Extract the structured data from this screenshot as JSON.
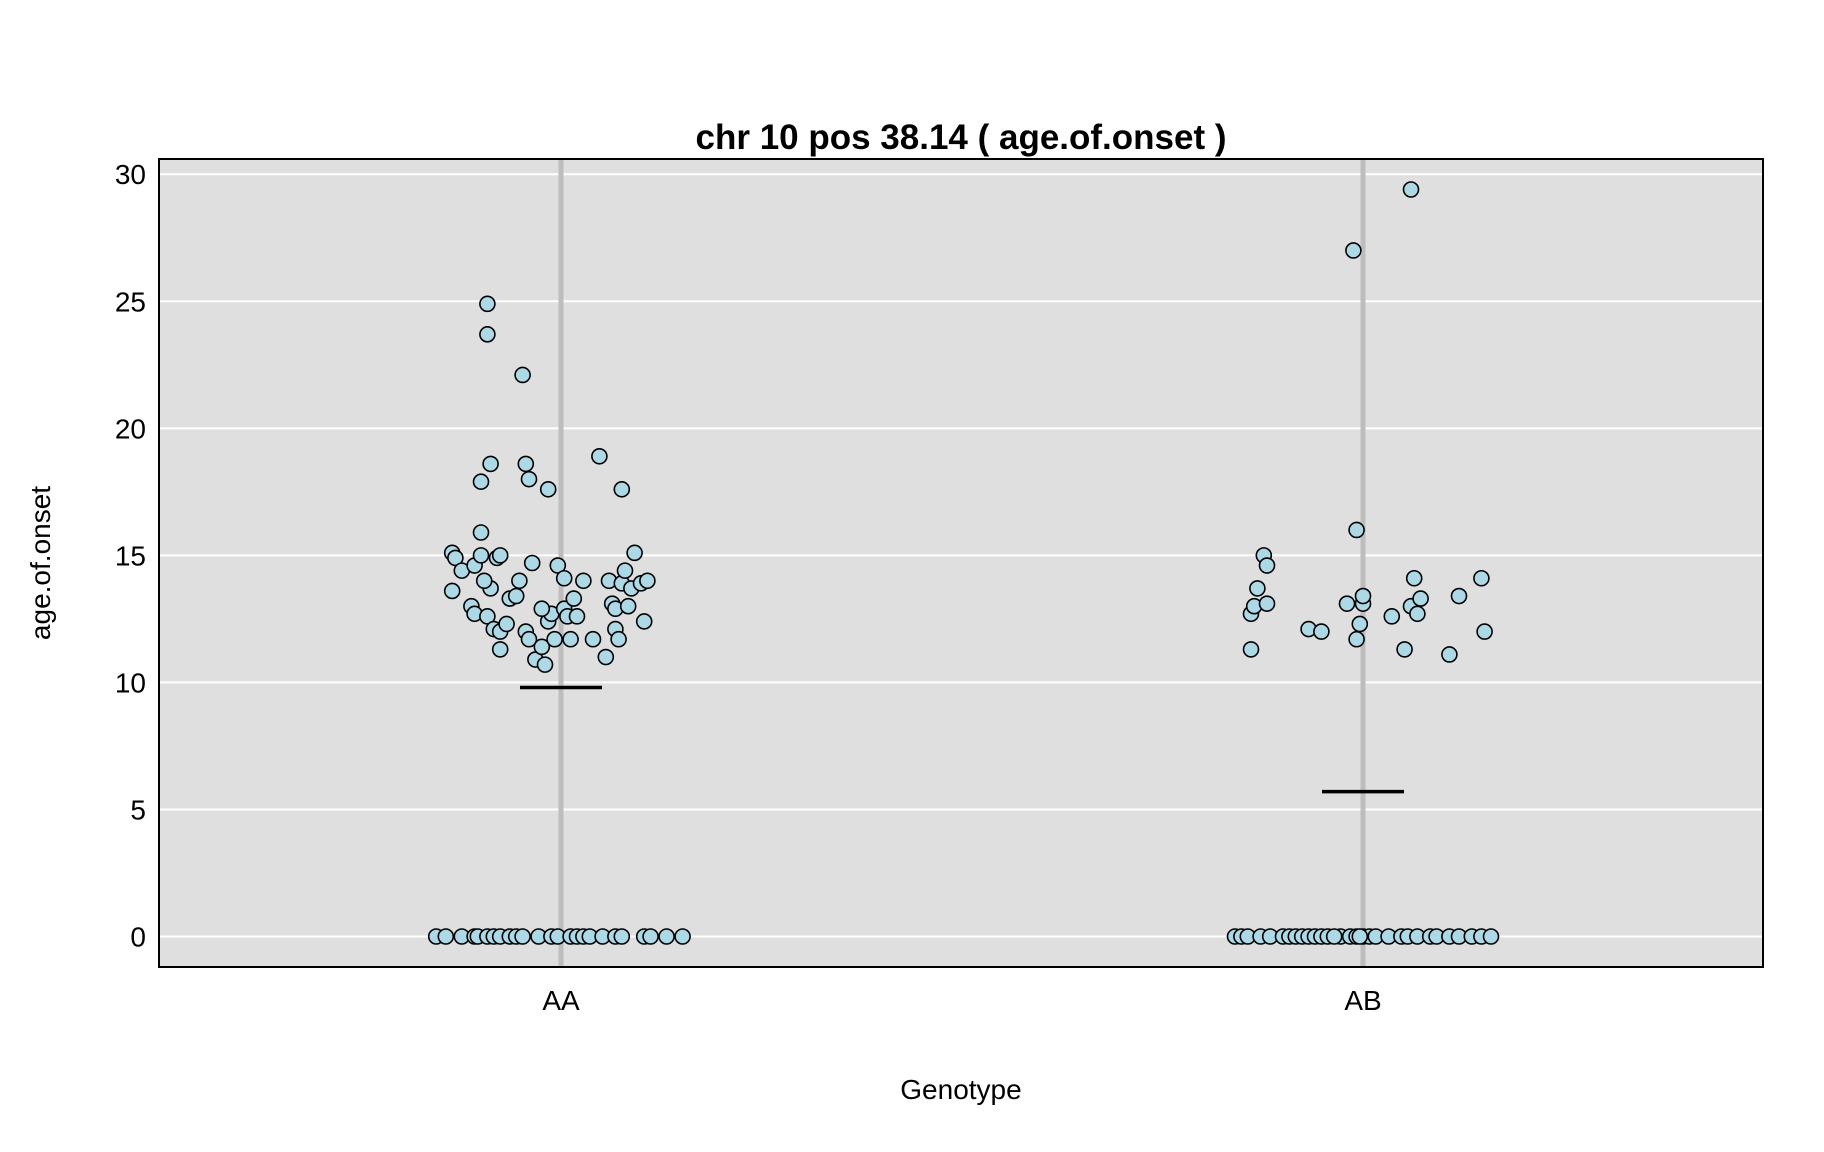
{
  "chart_data": {
    "type": "scatter",
    "title": "chr 10 pos 38.14 ( age.of.onset )",
    "xlabel": "Genotype",
    "ylabel": "age.of.onset",
    "categories": [
      "AA",
      "AB"
    ],
    "y_ticks": [
      "0",
      "5",
      "10",
      "15",
      "20",
      "25",
      "30"
    ],
    "ylim": [
      -1.2,
      30.6
    ],
    "grid": true,
    "colors": {
      "panel_bg": "#dfdfdf",
      "grid": "#ffffff",
      "category_line": "#bdbdbd",
      "point_fill": "#add8e6",
      "point_stroke": "#000000",
      "mean_line": "#000000"
    },
    "means": [
      9.8,
      5.7
    ],
    "series": [
      {
        "category": "AA",
        "points": [
          [
            -0.39,
            0
          ],
          [
            -0.36,
            0
          ],
          [
            -0.31,
            0
          ],
          [
            -0.27,
            0
          ],
          [
            -0.26,
            0
          ],
          [
            -0.23,
            0
          ],
          [
            -0.21,
            0
          ],
          [
            -0.19,
            0
          ],
          [
            -0.16,
            0
          ],
          [
            -0.14,
            0
          ],
          [
            -0.12,
            0
          ],
          [
            -0.07,
            0
          ],
          [
            -0.03,
            0
          ],
          [
            -0.01,
            0
          ],
          [
            0.03,
            0
          ],
          [
            0.05,
            0
          ],
          [
            0.07,
            0
          ],
          [
            0.09,
            0
          ],
          [
            0.13,
            0
          ],
          [
            0.17,
            0
          ],
          [
            0.19,
            0
          ],
          [
            0.26,
            0
          ],
          [
            0.28,
            0
          ],
          [
            0.33,
            0
          ],
          [
            0.38,
            0
          ],
          [
            -0.34,
            15.1
          ],
          [
            -0.33,
            14.9
          ],
          [
            -0.31,
            14.4
          ],
          [
            -0.27,
            14.6
          ],
          [
            -0.25,
            15.0
          ],
          [
            -0.2,
            14.9
          ],
          [
            -0.19,
            15.0
          ],
          [
            -0.22,
            13.7
          ],
          [
            -0.24,
            14.0
          ],
          [
            -0.16,
            13.3
          ],
          [
            -0.14,
            13.4
          ],
          [
            -0.13,
            14.0
          ],
          [
            -0.34,
            13.6
          ],
          [
            -0.28,
            13.0
          ],
          [
            -0.27,
            12.7
          ],
          [
            -0.23,
            12.6
          ],
          [
            -0.21,
            12.1
          ],
          [
            -0.19,
            12.0
          ],
          [
            -0.17,
            12.3
          ],
          [
            -0.19,
            11.3
          ],
          [
            -0.11,
            12.0
          ],
          [
            -0.1,
            11.7
          ],
          [
            -0.08,
            10.9
          ],
          [
            -0.06,
            11.4
          ],
          [
            -0.05,
            10.7
          ],
          [
            -0.04,
            12.4
          ],
          [
            -0.03,
            12.7
          ],
          [
            -0.02,
            11.7
          ],
          [
            0.01,
            12.9
          ],
          [
            0.02,
            12.6
          ],
          [
            0.03,
            11.7
          ],
          [
            0.04,
            13.3
          ],
          [
            -0.06,
            12.9
          ],
          [
            -0.09,
            14.7
          ],
          [
            -0.01,
            14.6
          ],
          [
            0.01,
            14.1
          ],
          [
            0.05,
            12.6
          ],
          [
            0.07,
            14.0
          ],
          [
            0.1,
            11.7
          ],
          [
            0.14,
            11.0
          ],
          [
            0.15,
            14.0
          ],
          [
            0.16,
            13.1
          ],
          [
            0.17,
            12.9
          ],
          [
            0.17,
            12.1
          ],
          [
            0.18,
            11.7
          ],
          [
            0.19,
            13.9
          ],
          [
            0.2,
            14.4
          ],
          [
            0.21,
            13.0
          ],
          [
            0.22,
            13.7
          ],
          [
            0.23,
            15.1
          ],
          [
            0.25,
            13.9
          ],
          [
            0.26,
            12.4
          ],
          [
            0.27,
            14.0
          ],
          [
            -0.25,
            15.9
          ],
          [
            -0.25,
            17.9
          ],
          [
            -0.22,
            18.6
          ],
          [
            -0.11,
            18.6
          ],
          [
            -0.1,
            18.0
          ],
          [
            -0.04,
            17.6
          ],
          [
            0.19,
            17.6
          ],
          [
            0.12,
            18.9
          ],
          [
            -0.12,
            22.1
          ],
          [
            -0.23,
            23.7
          ],
          [
            -0.23,
            24.9
          ]
        ]
      },
      {
        "category": "AB",
        "points": [
          [
            -0.4,
            0
          ],
          [
            -0.38,
            0
          ],
          [
            -0.36,
            0
          ],
          [
            -0.32,
            0
          ],
          [
            -0.29,
            0
          ],
          [
            -0.25,
            0
          ],
          [
            -0.23,
            0
          ],
          [
            -0.21,
            0
          ],
          [
            -0.19,
            0
          ],
          [
            -0.17,
            0
          ],
          [
            -0.15,
            0
          ],
          [
            -0.13,
            0
          ],
          [
            -0.11,
            0
          ],
          [
            -0.07,
            0
          ],
          [
            -0.04,
            0
          ],
          [
            -0.02,
            0
          ],
          [
            0.0,
            0
          ],
          [
            0.02,
            0
          ],
          [
            0.04,
            0
          ],
          [
            0.08,
            0
          ],
          [
            0.12,
            0
          ],
          [
            0.14,
            0
          ],
          [
            0.17,
            0
          ],
          [
            0.21,
            0
          ],
          [
            0.23,
            0
          ],
          [
            0.27,
            0
          ],
          [
            0.3,
            0
          ],
          [
            0.34,
            0
          ],
          [
            0.37,
            0
          ],
          [
            0.4,
            0
          ],
          [
            -0.09,
            0
          ],
          [
            -0.01,
            0
          ],
          [
            -0.35,
            12.7
          ],
          [
            -0.34,
            13.0
          ],
          [
            -0.33,
            13.7
          ],
          [
            -0.31,
            15.0
          ],
          [
            -0.3,
            14.6
          ],
          [
            -0.3,
            13.1
          ],
          [
            -0.35,
            11.3
          ],
          [
            -0.17,
            12.1
          ],
          [
            -0.13,
            12.0
          ],
          [
            -0.05,
            13.1
          ],
          [
            -0.02,
            11.7
          ],
          [
            -0.01,
            12.3
          ],
          [
            0.0,
            13.1
          ],
          [
            0.0,
            13.4
          ],
          [
            0.09,
            12.6
          ],
          [
            0.13,
            11.3
          ],
          [
            0.15,
            13.0
          ],
          [
            0.16,
            14.1
          ],
          [
            0.17,
            12.7
          ],
          [
            0.18,
            13.3
          ],
          [
            0.27,
            11.1
          ],
          [
            0.3,
            13.4
          ],
          [
            0.37,
            14.1
          ],
          [
            0.38,
            12.0
          ],
          [
            -0.02,
            16.0
          ],
          [
            -0.03,
            27.0
          ],
          [
            0.15,
            29.4
          ]
        ]
      }
    ]
  }
}
